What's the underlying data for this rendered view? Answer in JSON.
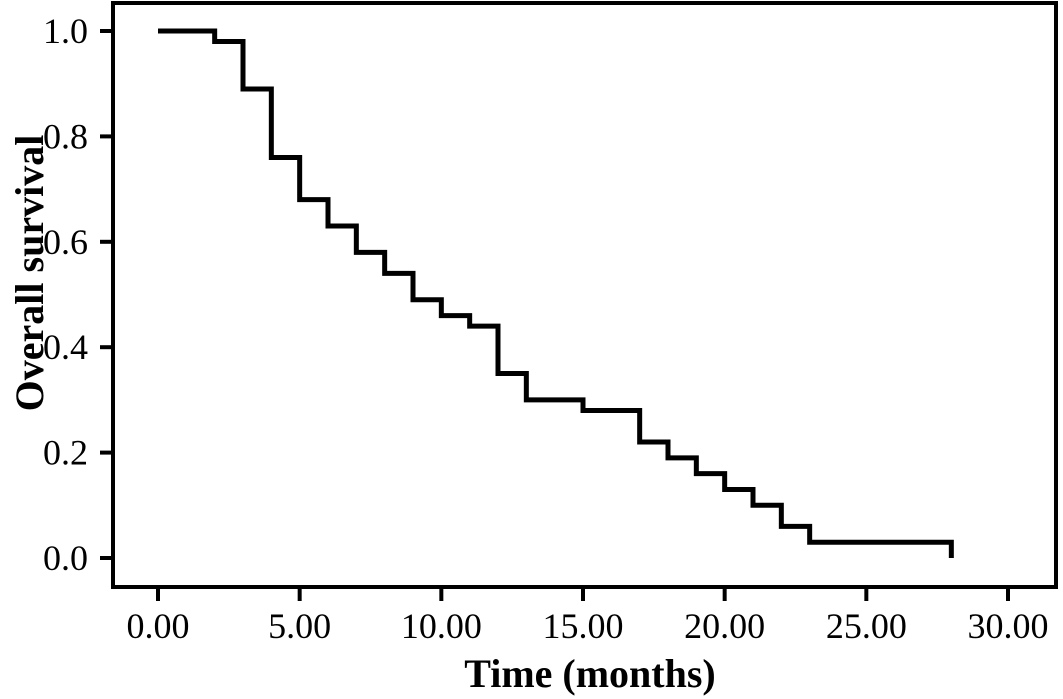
{
  "figure": {
    "background_color": "#ffffff",
    "frame_color": "#000000"
  },
  "chart_data": {
    "type": "line",
    "subtype": "kaplan-meier-step-curve",
    "title": "",
    "xlabel": "Time (months)",
    "ylabel": "Overall survival",
    "x_ticks": [
      "0.00",
      "5.00",
      "10.00",
      "15.00",
      "20.00",
      "25.00",
      "30.00"
    ],
    "x_tick_values": [
      0,
      5,
      10,
      15,
      20,
      25,
      30
    ],
    "y_ticks": [
      "1.0",
      "0.8",
      "0.6",
      "0.4",
      "0.2",
      "0.0"
    ],
    "y_tick_values": [
      1.0,
      0.8,
      0.6,
      0.4,
      0.2,
      0.0
    ],
    "xlim": [
      -1.6,
      31.7
    ],
    "ylim": [
      -0.06,
      1.05
    ],
    "grid": false,
    "legend": "none",
    "line_color": "#000000",
    "line_width": 5,
    "series": [
      {
        "name": "Overall survival",
        "step": "post",
        "x": [
          0,
          2,
          3,
          4,
          5,
          6,
          7,
          8,
          9,
          10,
          11,
          12,
          13,
          15,
          17,
          18,
          19,
          20,
          21,
          22,
          23,
          28
        ],
        "y": [
          1.0,
          0.98,
          0.89,
          0.76,
          0.68,
          0.63,
          0.58,
          0.54,
          0.49,
          0.46,
          0.44,
          0.35,
          0.3,
          0.28,
          0.22,
          0.19,
          0.16,
          0.13,
          0.1,
          0.06,
          0.03,
          0.0
        ]
      }
    ]
  }
}
